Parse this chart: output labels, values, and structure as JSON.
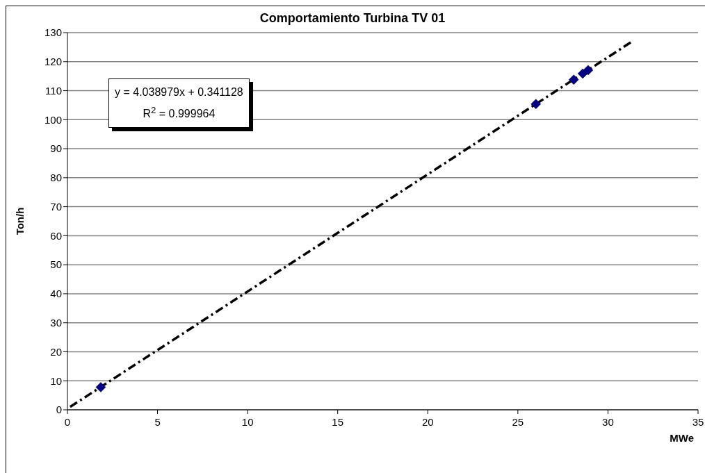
{
  "chart_data": {
    "type": "scatter",
    "title": "Comportamiento Turbina TV 01",
    "xlabel": "MWe",
    "ylabel": "Ton/h",
    "annotations": [
      "y = 4.038979x + 0.341128",
      "R$^{2}$ = 0.999964"
    ],
    "series": [
      {
        "color": "#000080",
        "x": [
          1.85,
          26.0,
          28.1,
          28.6,
          28.9
        ],
        "values": [
          7.8,
          105.4,
          113.8,
          115.9,
          117.1
        ]
      },
      {
        "type": "line",
        "color": "#000000",
        "line_style": "dashed",
        "marker": "none",
        "x": [
          0.15,
          31.4
        ],
        "values": [
          1,
          127.2
        ]
      }
    ],
    "marker": "diamond",
    "xlim": [
      0,
      35
    ],
    "xticks": [
      0,
      5,
      10,
      15,
      20,
      25,
      30,
      35
    ],
    "ylim": [
      0,
      130
    ],
    "yticks": [
      0,
      10,
      20,
      30,
      40,
      50,
      60,
      70,
      80,
      90,
      100,
      110,
      120,
      130
    ],
    "grid": "y"
  }
}
